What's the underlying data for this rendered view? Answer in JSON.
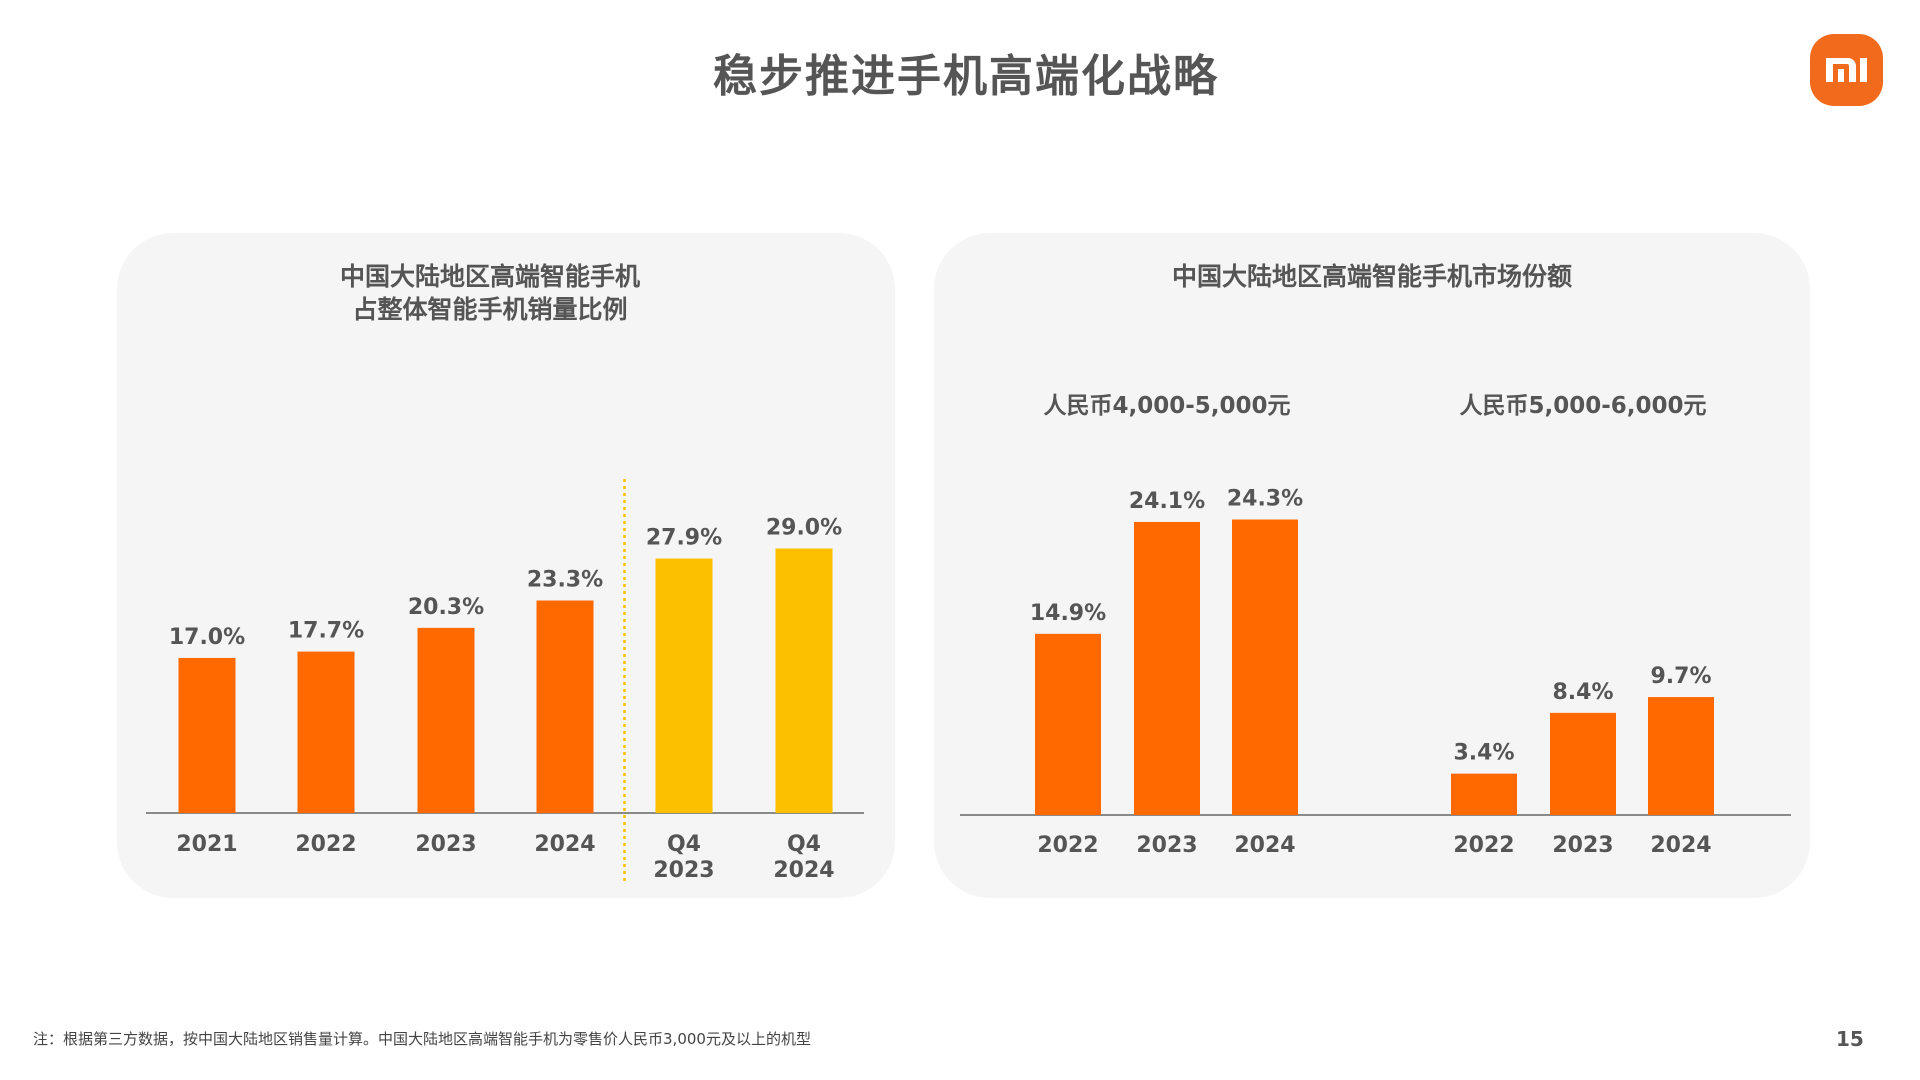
{
  "page": {
    "title": "稳步推进手机高端化战略",
    "logo_text": "mi",
    "footnote": "注：根据第三方数据，按中国大陆地区销售量计算。中国大陆地区高端智能手机为零售价人民币3,000元及以上的机型",
    "page_number": "15"
  },
  "colors": {
    "orange": "#ff6900",
    "yellow": "#fcc000",
    "text": "#555555",
    "panel": "#f5f5f5"
  },
  "chart_data": [
    {
      "type": "bar",
      "title": "中国大陆地区高端智能手机\n占整体智能手机销量比例",
      "title_lines": [
        "中国大陆地区高端智能手机",
        "占整体智能手机销量比例"
      ],
      "categories": [
        [
          "2021"
        ],
        [
          "2022"
        ],
        [
          "2023"
        ],
        [
          "2024"
        ],
        [
          "Q4",
          "2023"
        ],
        [
          "Q4",
          "2024"
        ]
      ],
      "values": [
        17.0,
        17.7,
        20.3,
        23.3,
        27.9,
        29.0
      ],
      "labels": [
        "17.0%",
        "17.7%",
        "20.3%",
        "23.3%",
        "27.9%",
        "29.0%"
      ],
      "bar_colors": [
        "orange",
        "orange",
        "orange",
        "orange",
        "yellow",
        "yellow"
      ],
      "divider_after_index": 3,
      "ylim": [
        0,
        32
      ],
      "grid": false
    },
    {
      "type": "bar",
      "title": "中国大陆地区高端智能手机市场份额",
      "groups": [
        {
          "name": "人民币4,000-5,000元",
          "categories": [
            "2022",
            "2023",
            "2024"
          ],
          "values": [
            14.9,
            24.1,
            24.3
          ],
          "labels": [
            "14.9%",
            "24.1%",
            "24.3%"
          ]
        },
        {
          "name": "人民币5,000-6,000元",
          "categories": [
            "2022",
            "2023",
            "2024"
          ],
          "values": [
            3.4,
            8.4,
            9.7
          ],
          "labels": [
            "3.4%",
            "8.4%",
            "9.7%"
          ]
        }
      ],
      "ylim": [
        0,
        27
      ],
      "grid": false
    }
  ]
}
